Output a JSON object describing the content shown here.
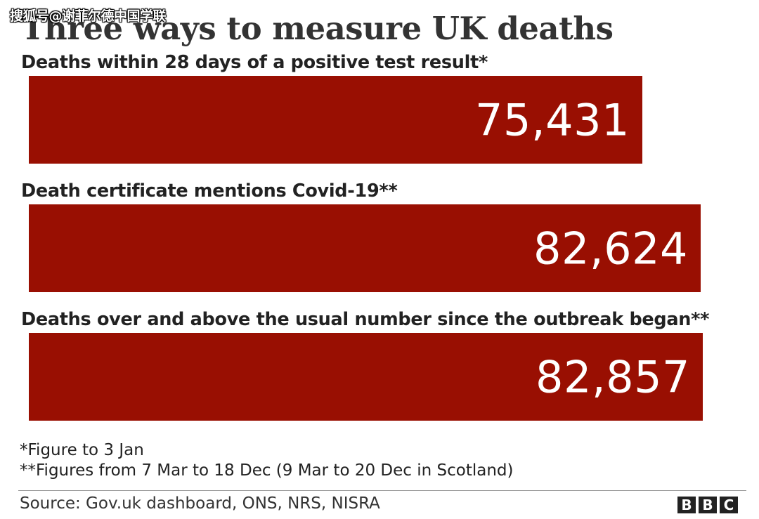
{
  "watermark": "搜狐号@谢菲尔德中国学联",
  "colors": {
    "bar": "#990f02"
  },
  "chart_data": {
    "type": "bar",
    "orientation": "horizontal",
    "title": "Three ways to measure UK deaths",
    "categories": [
      "Deaths within 28 days of a positive test result*",
      "Death certificate mentions Covid-19**",
      "Deaths over and above the usual number since the outbreak began**"
    ],
    "values": [
      75431,
      82624,
      82857
    ],
    "value_labels": [
      "75,431",
      "82,624",
      "82,857"
    ]
  },
  "notes": [
    "*Figure to 3 Jan",
    "**Figures from 7 Mar to 18 Dec (9 Mar to 20 Dec in Scotland)"
  ],
  "source": "Source: Gov.uk dashboard, ONS, NRS, NISRA",
  "logo": [
    "B",
    "B",
    "C"
  ]
}
